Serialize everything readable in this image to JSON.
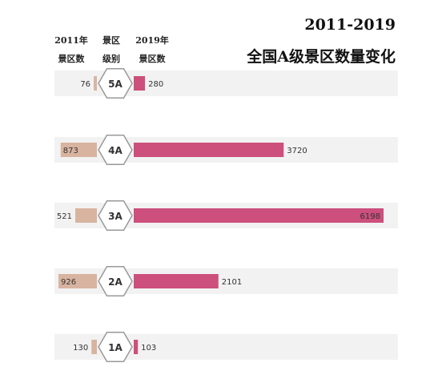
{
  "header": {
    "title_line1": "2011-2019",
    "title_line2": "全国A级景区数量变化",
    "col_left_line1": "2011年",
    "col_left_line2": "景区数",
    "col_mid_line1": "景区",
    "col_mid_line2": "级别",
    "col_right_line1": "2019年",
    "col_right_line2": "景区数"
  },
  "colors": {
    "bar_2011": "#d8b4a0",
    "bar_2019": "#cc4f7c",
    "row_band": "#f2f2f2",
    "hex_stroke": "#999999",
    "hex_fill": "#ffffff"
  },
  "chart_data": {
    "type": "bar",
    "categories": [
      "5A",
      "4A",
      "3A",
      "2A",
      "1A"
    ],
    "series": [
      {
        "name": "2011年景区数",
        "values": [
          76,
          873,
          521,
          926,
          130
        ]
      },
      {
        "name": "2019年景区数",
        "values": [
          280,
          3720,
          6198,
          2101,
          103
        ]
      }
    ],
    "title": "2011-2019 全国A级景区数量变化",
    "xlabel": "",
    "ylabel": "",
    "grid": false,
    "legend": "none"
  }
}
